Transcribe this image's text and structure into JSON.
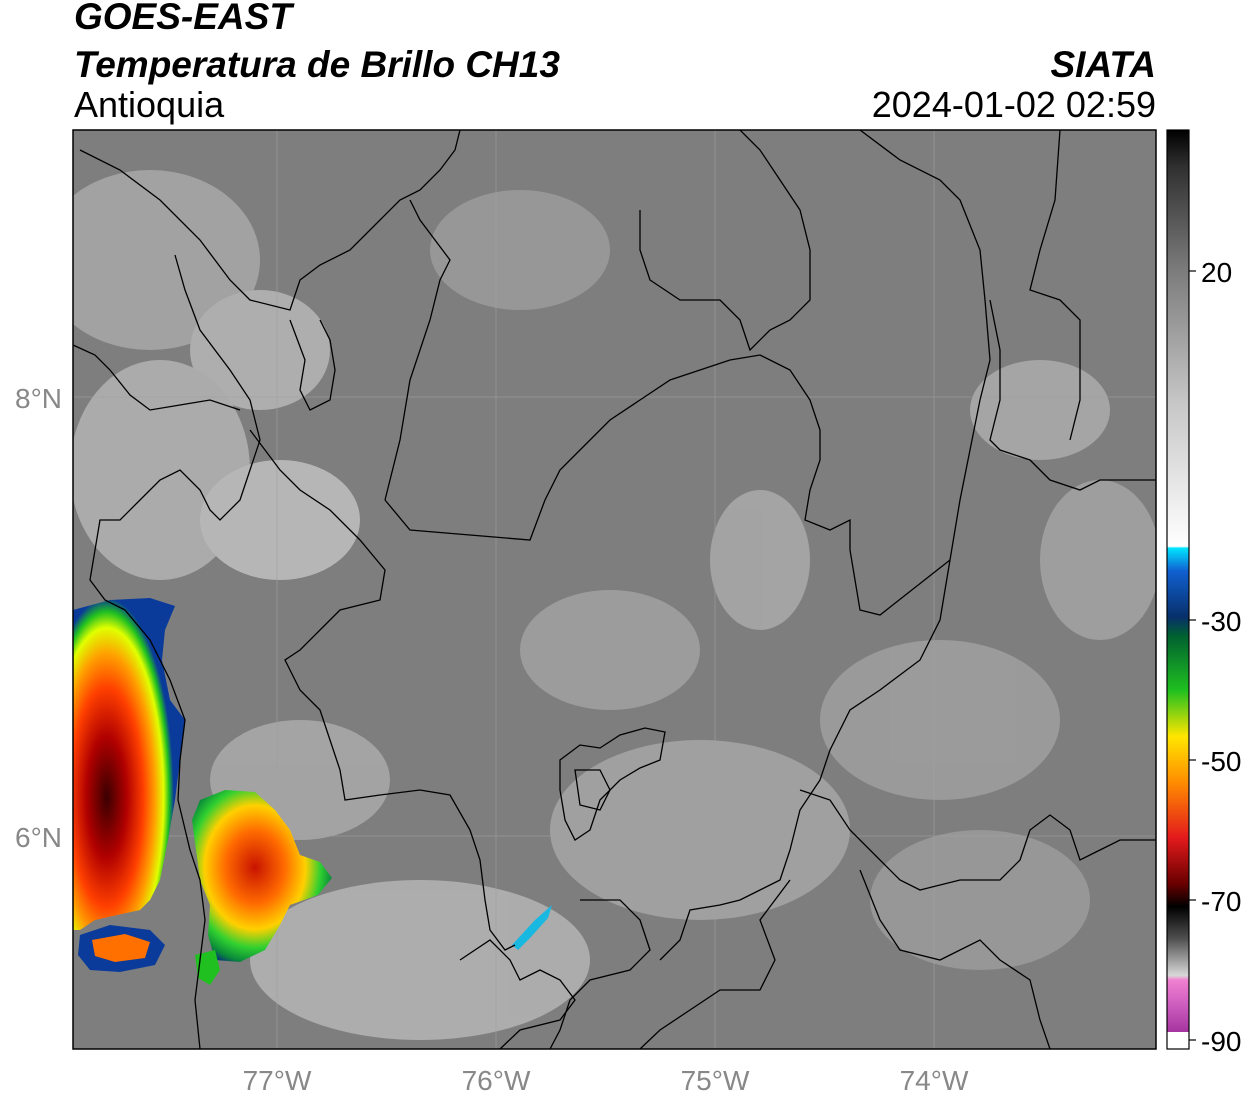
{
  "header": {
    "satellite": "GOES-EAST",
    "product": "Temperatura de Brillo CH13",
    "region": "Antioquia",
    "organization": "SIATA",
    "timestamp": "2024-01-02 02:59"
  },
  "map": {
    "extent": {
      "lon_min": -77.95,
      "lon_max": -73.0,
      "lat_min": 5.02,
      "lat_max": 9.23
    },
    "latitude_labels": [
      {
        "lat": 8,
        "label": "8°N"
      },
      {
        "lat": 6,
        "label": "6°N"
      }
    ],
    "longitude_labels": [
      {
        "lon": -77,
        "label": "77°W"
      },
      {
        "lon": -76,
        "label": "76°W"
      },
      {
        "lon": -75,
        "label": "75°W"
      },
      {
        "lon": -74,
        "label": "74°W"
      }
    ],
    "gridlines": true,
    "background_color": "#7e7e7e",
    "boundary_color": "#000000"
  },
  "colorbar": {
    "placement": "right",
    "range": [
      -90,
      40
    ],
    "tick_labels": [
      {
        "value": 20,
        "label": "20"
      },
      {
        "value": -30,
        "label": "-30"
      },
      {
        "value": -50,
        "label": "-50"
      },
      {
        "value": -70,
        "label": "-70"
      },
      {
        "value": -90,
        "label": "-90"
      }
    ],
    "colors": {
      "magenta": "#b04bb0",
      "dark_red": "#6a0000",
      "red": "#e31a1c",
      "orange": "#ff8c00",
      "yellow": "#ffe600",
      "green": "#20c020",
      "dark_blue": "#08306b",
      "cyan": "#00e5ff",
      "white": "#ffffff",
      "black": "#000000"
    }
  }
}
